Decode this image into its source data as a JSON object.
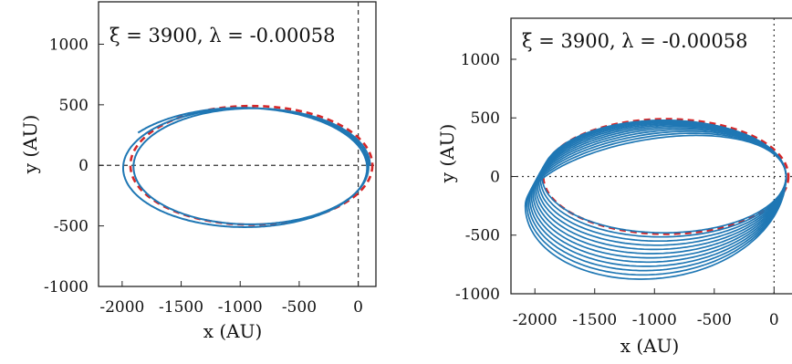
{
  "chart_data": [
    {
      "type": "line",
      "title": "",
      "annotation": "ξ = 3900,   λ = -0.00058",
      "xlabel": "x (AU)",
      "ylabel": "y (AU)",
      "xlim": [
        -2200,
        150
      ],
      "ylim": [
        -1000,
        1350
      ],
      "xticks": [
        -2000,
        -1500,
        -1000,
        -500,
        0
      ],
      "yticks": [
        -1000,
        -500,
        0,
        500,
        1000
      ],
      "xtick_labels": [
        "-2000",
        "-1500",
        "-1000",
        "-500",
        "0"
      ],
      "ytick_labels": [
        "-1000",
        "-500",
        "0",
        "500",
        "1000"
      ],
      "reference_lines": {
        "x": 0,
        "y": 0
      },
      "reference_line_style": "dashed",
      "series": [
        {
          "kind": "reference-ellipse",
          "style": "dashed",
          "color": "#d62728",
          "center": [
            -905,
            0
          ],
          "semi_axes": [
            1025,
            490
          ]
        },
        {
          "kind": "orbit",
          "style": "solid",
          "color": "#1f77b4",
          "turns": 2.4,
          "start": [
            100,
            0
          ],
          "end": [
            -1450,
            -530
          ],
          "center_start": [
            -880,
            0
          ],
          "center_end": [
            -1000,
            -25
          ],
          "semi_axes_start": [
            980,
            470
          ],
          "semi_axes_end": [
            1070,
            500
          ]
        }
      ]
    },
    {
      "type": "line",
      "title": "",
      "annotation": "ξ = 3900,   λ = -0.00058",
      "xlabel": "x (AU)",
      "ylabel": "y (AU)",
      "xlim": [
        -2200,
        150
      ],
      "ylim": [
        -1000,
        1350
      ],
      "xticks": [
        -2000,
        -1500,
        -1000,
        -500,
        0
      ],
      "yticks": [
        -1000,
        -500,
        0,
        500,
        1000
      ],
      "xtick_labels": [
        "-2000",
        "-1500",
        "-1000",
        "-500",
        "0"
      ],
      "ytick_labels": [
        "-1000",
        "-500",
        "0",
        "500",
        "1000"
      ],
      "reference_lines": {
        "x": 0,
        "y": 0
      },
      "reference_line_style": "dotted",
      "series": [
        {
          "kind": "reference-ellipse",
          "style": "dashed",
          "color": "#d62728",
          "center": [
            -905,
            0
          ],
          "semi_axes": [
            1025,
            490
          ]
        },
        {
          "kind": "orbit-family",
          "style": "solid",
          "color": "#1f77b4",
          "count": 12,
          "pericenter": [
            100,
            0
          ],
          "center_first": [
            -905,
            0
          ],
          "center_last": [
            -1050,
            -250
          ],
          "semi_axes_first": [
            1020,
            480
          ],
          "semi_axes_last": [
            1090,
            740
          ]
        }
      ]
    }
  ]
}
